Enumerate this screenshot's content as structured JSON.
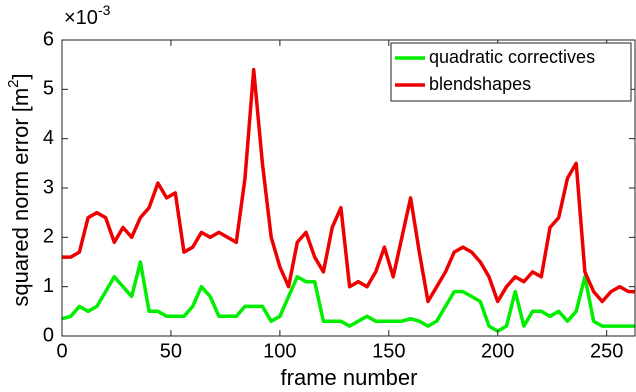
{
  "chart_data": {
    "type": "line",
    "xlabel": "frame number",
    "ylabel": [
      "squared norm error [m",
      "2",
      "]"
    ],
    "y_multiplier": [
      "×10",
      "-3"
    ],
    "x": [
      0,
      4,
      8,
      12,
      16,
      20,
      24,
      28,
      32,
      36,
      40,
      44,
      48,
      52,
      56,
      60,
      64,
      68,
      72,
      76,
      80,
      84,
      88,
      92,
      96,
      100,
      104,
      108,
      112,
      116,
      120,
      124,
      128,
      132,
      136,
      140,
      144,
      148,
      152,
      156,
      160,
      164,
      168,
      172,
      176,
      180,
      184,
      188,
      192,
      196,
      200,
      204,
      208,
      212,
      216,
      220,
      224,
      228,
      232,
      236,
      240,
      244,
      248,
      252,
      256,
      260,
      263
    ],
    "series": [
      {
        "name": "quadratic correctives",
        "color": "#00ee00",
        "values": [
          0.35,
          0.4,
          0.6,
          0.5,
          0.6,
          0.9,
          1.2,
          1.0,
          0.8,
          1.5,
          0.5,
          0.5,
          0.4,
          0.4,
          0.4,
          0.6,
          1.0,
          0.8,
          0.4,
          0.4,
          0.4,
          0.6,
          0.6,
          0.6,
          0.3,
          0.4,
          0.8,
          1.2,
          1.1,
          1.1,
          0.3,
          0.3,
          0.3,
          0.2,
          0.3,
          0.4,
          0.3,
          0.3,
          0.3,
          0.3,
          0.35,
          0.3,
          0.2,
          0.3,
          0.6,
          0.9,
          0.9,
          0.8,
          0.7,
          0.2,
          0.1,
          0.2,
          0.9,
          0.2,
          0.5,
          0.5,
          0.4,
          0.5,
          0.3,
          0.5,
          1.2,
          0.3,
          0.2,
          0.2,
          0.2,
          0.2,
          0.2
        ]
      },
      {
        "name": "blendshapes",
        "color": "#ee0000",
        "values": [
          1.6,
          1.6,
          1.7,
          2.4,
          2.5,
          2.4,
          1.9,
          2.2,
          2.0,
          2.4,
          2.6,
          3.1,
          2.8,
          2.9,
          1.7,
          1.8,
          2.1,
          2.0,
          2.1,
          2.0,
          1.9,
          3.2,
          5.4,
          3.5,
          2.0,
          1.4,
          1.0,
          1.9,
          2.1,
          1.6,
          1.3,
          2.2,
          2.6,
          1.0,
          1.1,
          1.0,
          1.3,
          1.8,
          1.2,
          2.0,
          2.8,
          1.7,
          0.7,
          1.0,
          1.3,
          1.7,
          1.8,
          1.7,
          1.5,
          1.2,
          0.7,
          1.0,
          1.2,
          1.1,
          1.3,
          1.2,
          2.2,
          2.4,
          3.2,
          3.5,
          1.3,
          0.9,
          0.7,
          0.9,
          1.0,
          0.9,
          0.9
        ]
      }
    ],
    "xlim": [
      0,
      263
    ],
    "ylim": [
      0,
      6
    ],
    "xticks": [
      0,
      50,
      100,
      150,
      200,
      250
    ],
    "yticks": [
      0,
      1,
      2,
      3,
      4,
      5,
      6
    ],
    "legend": "upper right"
  }
}
